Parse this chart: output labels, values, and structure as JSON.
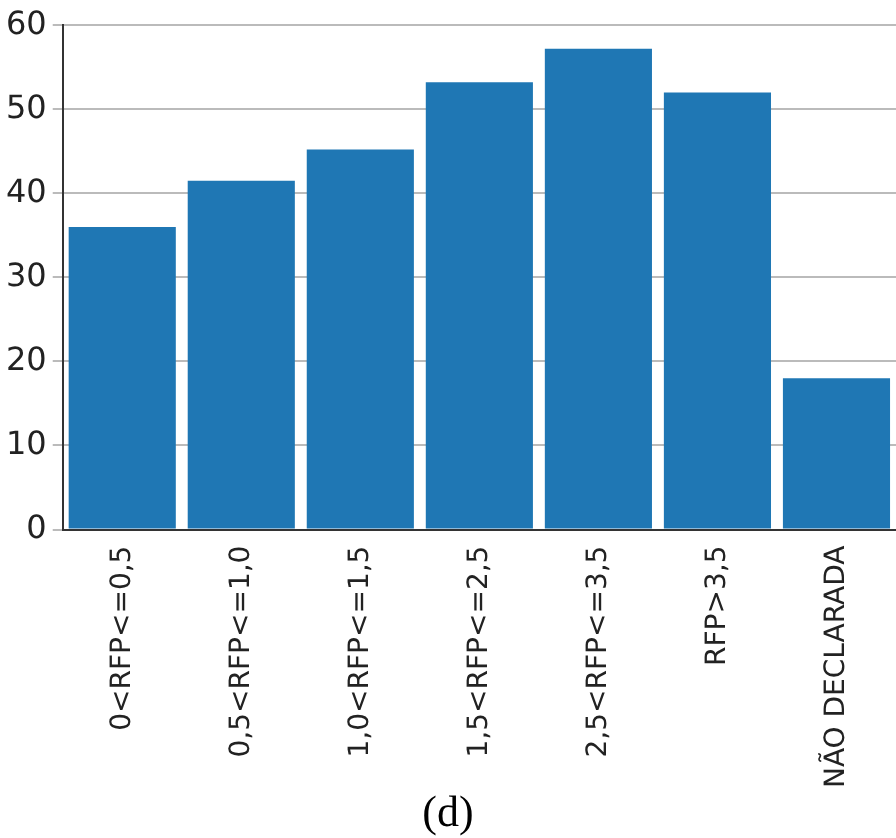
{
  "chart_data": {
    "type": "bar",
    "categories": [
      "0<RFP<=0,5",
      "0,5<RFP<=1,0",
      "1,0<RFP<=1,5",
      "1,5<RFP<=2,5",
      "2,5<RFP<=3,5",
      "RFP>3,5",
      "NÃO DECLARADA"
    ],
    "values": [
      36,
      41.5,
      45.2,
      53.2,
      57.2,
      52,
      18
    ],
    "color": "#1f77b4",
    "ylim": [
      0,
      60
    ],
    "yticks": [
      0,
      10,
      20,
      30,
      40,
      50,
      60
    ],
    "grid": "y",
    "legend": false,
    "annotations": [
      "(d)"
    ]
  }
}
